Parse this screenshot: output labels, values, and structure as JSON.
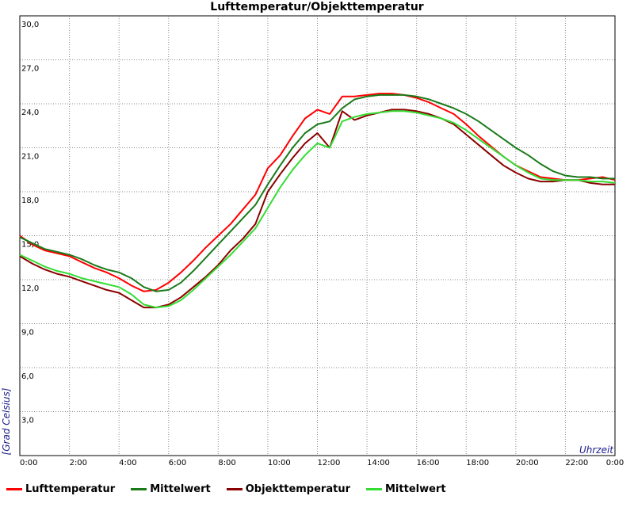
{
  "chart_data": {
    "type": "line",
    "title": "Lufttemperatur/Objekttemperatur",
    "xlabel": "Uhrzeit",
    "ylabel": "[Grad Celsius]",
    "xlim": [
      0,
      24
    ],
    "ylim": [
      0,
      30
    ],
    "grid": true,
    "legend_position": "bottom",
    "x_ticks": [
      "0:00",
      "2:00",
      "4:00",
      "6:00",
      "8:00",
      "10:00",
      "12:00",
      "14:00",
      "16:00",
      "18:00",
      "20:00",
      "22:00",
      "0:00"
    ],
    "y_ticks": [
      "3,0",
      "6,0",
      "9,0",
      "12,0",
      "15,0",
      "18,0",
      "21,0",
      "24,0",
      "27,0",
      "30,0"
    ],
    "x": [
      0,
      0.5,
      1,
      1.5,
      2,
      2.5,
      3,
      3.5,
      4,
      4.5,
      5,
      5.5,
      6,
      6.5,
      7,
      7.5,
      8,
      8.5,
      9,
      9.5,
      10,
      10.5,
      11,
      11.5,
      12,
      12.5,
      13,
      13.5,
      14,
      14.5,
      15,
      15.5,
      16,
      16.5,
      17,
      17.5,
      18,
      18.5,
      19,
      19.5,
      20,
      20.5,
      21,
      21.5,
      22,
      22.5,
      23,
      23.5,
      24
    ],
    "series": [
      {
        "name": "Lufttemperatur",
        "color": "#ff0000",
        "values": [
          15.0,
          14.4,
          14.0,
          13.8,
          13.6,
          13.2,
          12.8,
          12.5,
          12.1,
          11.6,
          11.2,
          11.3,
          11.8,
          12.5,
          13.3,
          14.2,
          15.0,
          15.8,
          16.8,
          17.8,
          19.6,
          20.5,
          21.8,
          23.0,
          23.6,
          23.3,
          24.5,
          24.5,
          24.6,
          24.7,
          24.7,
          24.6,
          24.4,
          24.1,
          23.7,
          23.3,
          22.6,
          21.8,
          21.1,
          20.4,
          19.8,
          19.4,
          19.0,
          18.9,
          18.8,
          18.8,
          18.9,
          19.0,
          18.8
        ]
      },
      {
        "name": "Mittelwert",
        "color": "#1a7a1a",
        "values": [
          14.9,
          14.5,
          14.1,
          13.9,
          13.7,
          13.4,
          13.0,
          12.7,
          12.5,
          12.1,
          11.5,
          11.2,
          11.3,
          11.8,
          12.6,
          13.5,
          14.4,
          15.3,
          16.2,
          17.1,
          18.5,
          19.8,
          21.0,
          22.0,
          22.6,
          22.8,
          23.7,
          24.3,
          24.5,
          24.6,
          24.6,
          24.6,
          24.5,
          24.3,
          24.0,
          23.7,
          23.3,
          22.8,
          22.2,
          21.6,
          21.0,
          20.5,
          19.9,
          19.4,
          19.1,
          19.0,
          19.0,
          18.9,
          18.9
        ]
      },
      {
        "name": "Objekttemperatur",
        "color": "#8b0000",
        "values": [
          13.6,
          13.1,
          12.7,
          12.4,
          12.2,
          11.9,
          11.6,
          11.3,
          11.1,
          10.6,
          10.1,
          10.1,
          10.3,
          10.8,
          11.5,
          12.2,
          13.0,
          14.0,
          14.8,
          15.8,
          18.0,
          19.2,
          20.3,
          21.3,
          22.0,
          21.0,
          23.5,
          22.9,
          23.2,
          23.4,
          23.6,
          23.6,
          23.5,
          23.3,
          23.0,
          22.6,
          21.9,
          21.2,
          20.5,
          19.8,
          19.3,
          18.9,
          18.7,
          18.7,
          18.8,
          18.8,
          18.6,
          18.5,
          18.5
        ]
      },
      {
        "name": "Mittelwert",
        "color": "#33dd33",
        "values": [
          13.7,
          13.3,
          12.9,
          12.6,
          12.4,
          12.1,
          11.9,
          11.7,
          11.5,
          11.0,
          10.3,
          10.1,
          10.2,
          10.6,
          11.3,
          12.1,
          12.9,
          13.7,
          14.6,
          15.5,
          16.9,
          18.3,
          19.5,
          20.5,
          21.3,
          21.0,
          22.8,
          23.1,
          23.3,
          23.4,
          23.5,
          23.5,
          23.4,
          23.2,
          23.0,
          22.7,
          22.2,
          21.6,
          21.0,
          20.4,
          19.8,
          19.3,
          18.9,
          18.8,
          18.8,
          18.8,
          18.7,
          18.7,
          18.6
        ]
      }
    ]
  }
}
